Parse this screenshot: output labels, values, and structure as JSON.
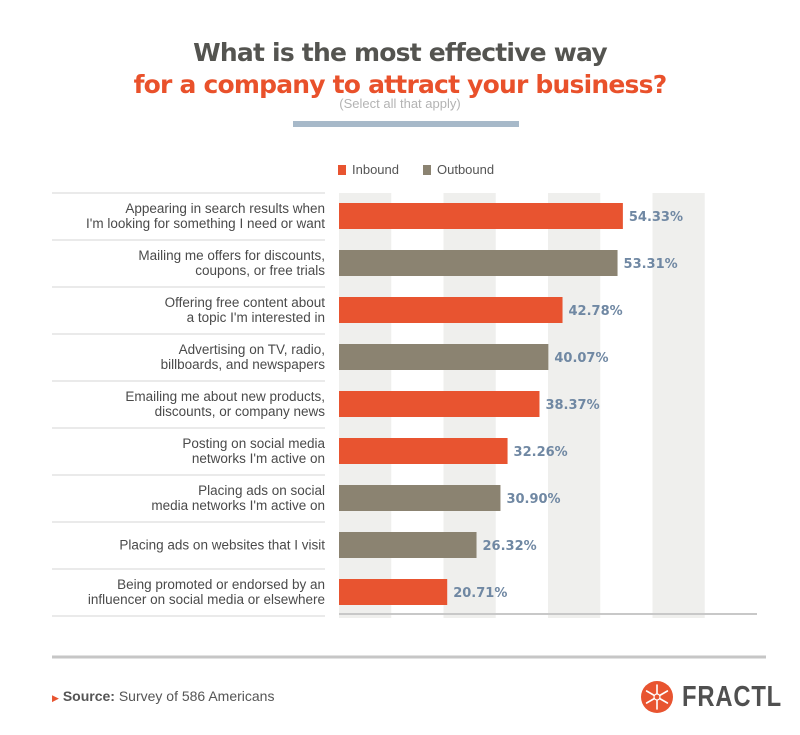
{
  "header": {
    "title_line1": "What is the most effective way",
    "title_line2": "for a company to attract your business?",
    "subtitle": "(Select all that apply)"
  },
  "chart_data": {
    "type": "bar",
    "orientation": "horizontal",
    "categories": [
      "Appearing in search results when\nI'm looking for something I need or want",
      "Mailing me offers for discounts,\ncoupons, or free trials",
      "Offering free content about\na topic I'm interested in",
      "Advertising on TV, radio,\nbillboards, and newspapers",
      "Emailing me about new products,\ndiscounts, or company news",
      "Posting on social media\nnetworks I'm active on",
      "Placing ads on social\nmedia networks I'm active on",
      "Placing ads on websites that I visit",
      "Being promoted or endorsed by an\ninfluencer on social media or elsewhere"
    ],
    "values": [
      54.33,
      53.31,
      42.78,
      40.07,
      38.37,
      32.26,
      30.9,
      26.32,
      20.71
    ],
    "labels": [
      "54.33%",
      "53.31%",
      "42.78%",
      "40.07%",
      "38.37%",
      "32.26%",
      "30.90%",
      "26.32%",
      "20.71%"
    ],
    "group": [
      "Inbound",
      "Outbound",
      "Inbound",
      "Outbound",
      "Inbound",
      "Inbound",
      "Outbound",
      "Outbound",
      "Inbound"
    ],
    "legend": [
      {
        "name": "Inbound",
        "color": "#e85430"
      },
      {
        "name": "Outbound",
        "color": "#8b8371"
      }
    ],
    "legend_position": "top",
    "xlim": [
      0,
      80
    ],
    "grid": "alternating bands every 10",
    "label_color": "#7088a3"
  },
  "footer": {
    "source_label": "Source:",
    "source_text": "Survey of 586 Americans",
    "logo": "FRACTL",
    "logo_color": "#e85430"
  }
}
